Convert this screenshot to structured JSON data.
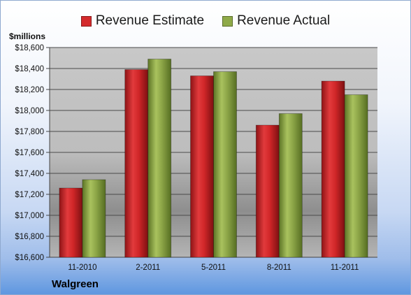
{
  "chart_data": {
    "type": "bar",
    "title": "",
    "xlabel": "",
    "ylabel": "$millions",
    "ylim": [
      16600,
      18600
    ],
    "yticks": [
      16600,
      16800,
      17000,
      17200,
      17400,
      17600,
      17800,
      18000,
      18200,
      18400,
      18600
    ],
    "ytick_labels": [
      "$16,600",
      "$16,800",
      "$17,000",
      "$17,200",
      "$17,400",
      "$17,600",
      "$17,800",
      "$18,000",
      "$18,200",
      "$18,400",
      "$18,600"
    ],
    "categories": [
      "11-2010",
      "2-2011",
      "5-2011",
      "8-2011",
      "11-2011"
    ],
    "series": [
      {
        "name": "Revenue Estimate",
        "color": "#d42a2c",
        "values": [
          17260,
          18390,
          18330,
          17860,
          18280
        ]
      },
      {
        "name": "Revenue Actual",
        "color": "#8faa48",
        "values": [
          17340,
          18490,
          18370,
          17970,
          18150
        ]
      }
    ],
    "grid": true,
    "legend_position": "top-center",
    "footer_label": "Walgreen"
  }
}
